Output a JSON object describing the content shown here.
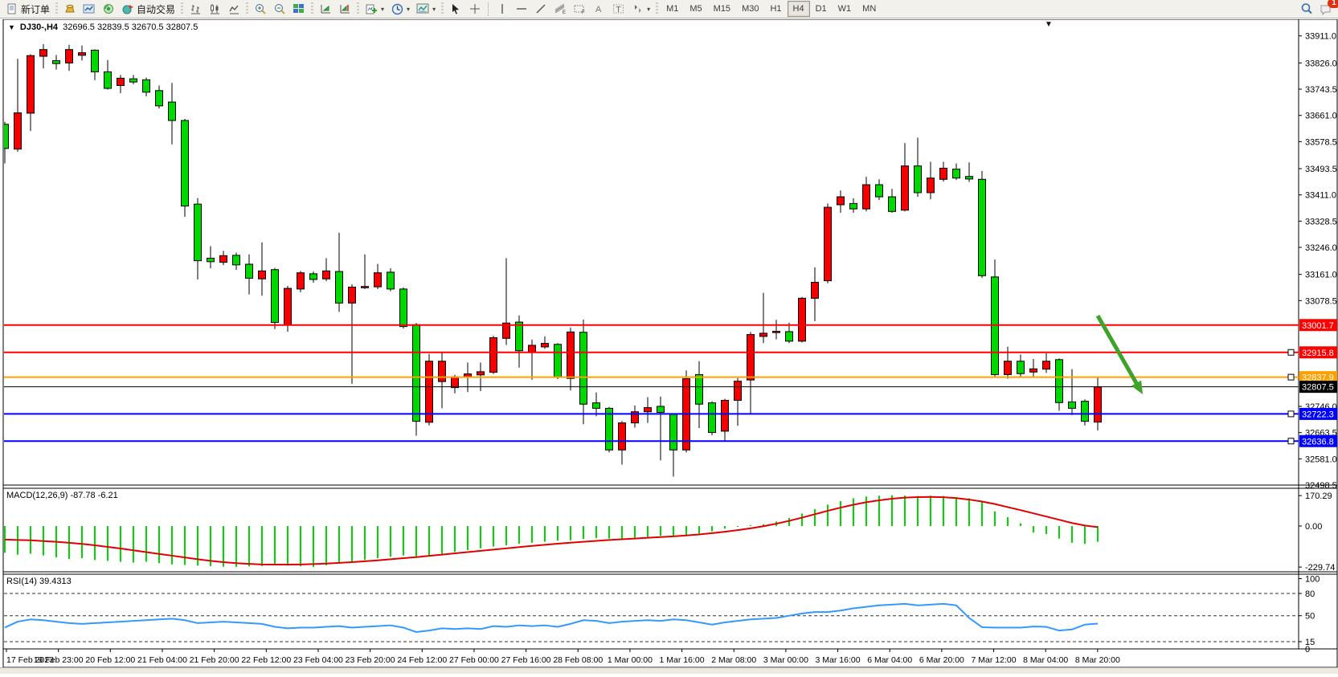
{
  "app": {
    "kind": "MetaTrader-style trading terminal"
  },
  "toolbar": {
    "new_order": "新订单",
    "auto_trading": "自动交易",
    "timeframes": [
      "M1",
      "M5",
      "M15",
      "M30",
      "H1",
      "H4",
      "D1",
      "W1",
      "MN"
    ],
    "active_timeframe": "H4",
    "chat_badge_count": "1",
    "icons": [
      "new-order-icon",
      "deposit-icon",
      "charts-window-icon",
      "signals-icon",
      "autotrading-icon",
      "bar-chart-icon",
      "candlestick-chart-icon",
      "line-chart-icon",
      "zoom-in-icon",
      "zoom-out-icon",
      "tile-windows-icon",
      "auto-scroll-icon",
      "chart-shift-icon",
      "new-chart-icon",
      "periods-clock-icon",
      "template-icon",
      "cursor-icon",
      "crosshair-icon",
      "vertical-line-icon",
      "horizontal-line-icon",
      "trendline-icon",
      "fibonacci-icon",
      "channels-icon",
      "text-icon",
      "text-label-icon",
      "arrows-icon",
      "search-icon",
      "chat-icon"
    ]
  },
  "chart": {
    "header": {
      "dropdown_marker": "▼",
      "symbol": "DJ30-,H4",
      "ohlc": "32696.5 32839.5 32670.5 32807.5"
    },
    "y_ticks": [
      33911.0,
      33826.0,
      33743.5,
      33661.0,
      33578.5,
      33493.5,
      33411.0,
      33328.5,
      33246.0,
      33161.0,
      33078.5,
      32746.0,
      32663.5,
      32581.0,
      32498.5
    ],
    "levels": [
      {
        "price": 33001.7,
        "color": "#ff0000",
        "handle": false,
        "name": "resistance-line-1"
      },
      {
        "price": 32915.8,
        "color": "#ff0000",
        "handle": true,
        "name": "resistance-line-2"
      },
      {
        "price": 32837.9,
        "color": "#ffa000",
        "handle": true,
        "name": "pivot-line"
      },
      {
        "price": 32807.5,
        "color": "#000000",
        "handle": false,
        "name": "current-price-line"
      },
      {
        "price": 32722.3,
        "color": "#0000ff",
        "handle": true,
        "name": "support-line-1"
      },
      {
        "price": 32636.8,
        "color": "#0000ff",
        "handle": true,
        "name": "support-line-2"
      }
    ],
    "x_labels": [
      "17 Feb 2023",
      "19 Feb 23:00",
      "20 Feb 12:00",
      "21 Feb 04:00",
      "21 Feb 20:00",
      "22 Feb 12:00",
      "23 Feb 04:00",
      "23 Feb 20:00",
      "24 Feb 12:00",
      "27 Feb 00:00",
      "27 Feb 16:00",
      "28 Feb 08:00",
      "1 Mar 00:00",
      "1 Mar 16:00",
      "2 Mar 08:00",
      "3 Mar 00:00",
      "3 Mar 16:00",
      "6 Mar 04:00",
      "6 Mar 20:00",
      "7 Mar 12:00",
      "8 Mar 04:00",
      "8 Mar 20:00"
    ],
    "annotation_arrow": {
      "color": "#3fa32a",
      "from": {
        "bar": 85.0,
        "price": 33031
      },
      "to": {
        "bar": 88.5,
        "price": 32784
      }
    },
    "colors": {
      "bull_body": "#f40000",
      "bear_body": "#00d800",
      "outline": "#000000",
      "level_red": "#ff0000",
      "level_orange": "#ffa000",
      "level_blue": "#0000ff",
      "macd_hist": "#00d800",
      "macd_signal": "#e00000",
      "rsi_line": "#3399ff"
    }
  },
  "macd": {
    "title": "MACD(12,26,9)",
    "values": "-87.78 -6.21",
    "axis": [
      "170.29",
      "0.00",
      "-229.74"
    ],
    "range": [
      170.29,
      -229.74
    ]
  },
  "rsi": {
    "title": "RSI(14)",
    "value": "39.4313",
    "axis": [
      "100",
      "80",
      "50",
      "15",
      "0"
    ],
    "dashed_levels": [
      80,
      50,
      15
    ]
  },
  "chart_data": {
    "type": "candlestick+macd+rsi",
    "symbol": "DJ30-",
    "timeframe": "H4",
    "current_bar": {
      "open": 32696.5,
      "high": 32839.5,
      "low": 32670.5,
      "close": 32807.5
    },
    "price_axis_range": [
      33911.0,
      32498.5
    ],
    "candles_format": [
      "color g=bear r=bull",
      "body_top",
      "body_bottom",
      "high",
      "low"
    ],
    "candles": [
      [
        "g",
        33633,
        33557,
        33641,
        33510
      ],
      [
        "r",
        33669,
        33555,
        33839,
        33547
      ],
      [
        "r",
        33849,
        33668,
        33853,
        33612
      ],
      [
        "r",
        33868,
        33847,
        33885,
        33809
      ],
      [
        "g",
        33833,
        33824,
        33851,
        33805
      ],
      [
        "r",
        33868,
        33826,
        33883,
        33801
      ],
      [
        "r",
        33858,
        33850,
        33881,
        33834
      ],
      [
        "g",
        33866,
        33798,
        33869,
        33772
      ],
      [
        "g",
        33798,
        33746,
        33835,
        33742
      ],
      [
        "r",
        33778,
        33755,
        33788,
        33731
      ],
      [
        "g",
        33776,
        33766,
        33788,
        33759
      ],
      [
        "g",
        33773,
        33734,
        33780,
        33721
      ],
      [
        "g",
        33739,
        33691,
        33755,
        33683
      ],
      [
        "g",
        33703,
        33645,
        33763,
        33570
      ],
      [
        "g",
        33645,
        33376,
        33650,
        33342
      ],
      [
        "g",
        33382,
        33204,
        33401,
        33145
      ],
      [
        "g",
        33212,
        33201,
        33250,
        33180
      ],
      [
        "r",
        33220,
        33199,
        33235,
        33190
      ],
      [
        "g",
        33221,
        33191,
        33230,
        33175
      ],
      [
        "g",
        33193,
        33149,
        33224,
        33098
      ],
      [
        "r",
        33172,
        33147,
        33262,
        33094
      ],
      [
        "g",
        33176,
        33010,
        33181,
        32989
      ],
      [
        "r",
        33117,
        33002,
        33125,
        32981
      ],
      [
        "r",
        33166,
        33115,
        33172,
        33105
      ],
      [
        "g",
        33163,
        33145,
        33170,
        33135
      ],
      [
        "r",
        33172,
        33147,
        33212,
        33140
      ],
      [
        "g",
        33170,
        33071,
        33292,
        33043
      ],
      [
        "r",
        33121,
        33071,
        33130,
        32817
      ],
      [
        "r",
        33123,
        33120,
        33224,
        33115
      ],
      [
        "r",
        33166,
        33122,
        33194,
        33115
      ],
      [
        "g",
        33168,
        33115,
        33180,
        33108
      ],
      [
        "g",
        33115,
        32997,
        33120,
        32991
      ],
      [
        "g",
        33003,
        32699,
        33008,
        32654
      ],
      [
        "r",
        32888,
        32696,
        32911,
        32686
      ],
      [
        "r",
        32888,
        32824,
        32917,
        32740
      ],
      [
        "r",
        32839,
        32805,
        32845,
        32787
      ],
      [
        "r",
        32848,
        32838,
        32884,
        32791
      ],
      [
        "r",
        32855,
        32845,
        32884,
        32794
      ],
      [
        "r",
        32962,
        32853,
        32968,
        32848
      ],
      [
        "r",
        33008,
        32960,
        33212,
        32939
      ],
      [
        "g",
        33011,
        32921,
        33032,
        32868
      ],
      [
        "r",
        32938,
        32916,
        32956,
        32830
      ],
      [
        "r",
        32944,
        32933,
        32966,
        32927
      ],
      [
        "g",
        32941,
        32837,
        32945,
        32832
      ],
      [
        "r",
        32980,
        32834,
        32994,
        32796
      ],
      [
        "g",
        32979,
        32753,
        33019,
        32690
      ],
      [
        "g",
        32757,
        32740,
        32790,
        32715
      ],
      [
        "g",
        32740,
        32609,
        32744,
        32601
      ],
      [
        "r",
        32694,
        32609,
        32700,
        32563
      ],
      [
        "r",
        32729,
        32694,
        32749,
        32679
      ],
      [
        "r",
        32742,
        32729,
        32775,
        32694
      ],
      [
        "g",
        32746,
        32727,
        32777,
        32576
      ],
      [
        "g",
        32721,
        32609,
        32725,
        32525
      ],
      [
        "r",
        32833,
        32609,
        32859,
        32601
      ],
      [
        "g",
        32846,
        32753,
        32888,
        32678
      ],
      [
        "g",
        32757,
        32664,
        32762,
        32655
      ],
      [
        "r",
        32765,
        32668,
        32770,
        32638
      ],
      [
        "r",
        32825,
        32765,
        32835,
        32685
      ],
      [
        "r",
        32972,
        32829,
        32980,
        32720
      ],
      [
        "r",
        32976,
        32966,
        33103,
        32945
      ],
      [
        "r",
        32982,
        32979,
        33018,
        32957
      ],
      [
        "g",
        32981,
        32951,
        33009,
        32945
      ],
      [
        "r",
        33086,
        32951,
        33090,
        32947
      ],
      [
        "r",
        33136,
        33086,
        33183,
        33014
      ],
      [
        "r",
        33372,
        33141,
        33384,
        33133
      ],
      [
        "r",
        33405,
        33380,
        33425,
        33355
      ],
      [
        "g",
        33384,
        33367,
        33400,
        33355
      ],
      [
        "r",
        33443,
        33367,
        33468,
        33359
      ],
      [
        "g",
        33443,
        33405,
        33460,
        33395
      ],
      [
        "g",
        33405,
        33359,
        33430,
        33355
      ],
      [
        "r",
        33502,
        33363,
        33574,
        33359
      ],
      [
        "g",
        33502,
        33418,
        33591,
        33405
      ],
      [
        "r",
        33464,
        33418,
        33515,
        33397
      ],
      [
        "r",
        33495,
        33460,
        33515,
        33453
      ],
      [
        "g",
        33492,
        33464,
        33510,
        33458
      ],
      [
        "g",
        33469,
        33461,
        33513,
        33452
      ],
      [
        "g",
        33460,
        33157,
        33486,
        33150
      ],
      [
        "g",
        33153,
        32846,
        33208,
        32836
      ],
      [
        "r",
        32888,
        32846,
        32934,
        32833
      ],
      [
        "g",
        32888,
        32849,
        32909,
        32839
      ],
      [
        "r",
        32864,
        32854,
        32895,
        32840
      ],
      [
        "r",
        32888,
        32863,
        32913,
        32851
      ],
      [
        "g",
        32893,
        32758,
        32897,
        32732
      ],
      [
        "g",
        32760,
        32740,
        32863,
        32719
      ],
      [
        "g",
        32762,
        32699,
        32768,
        32686
      ],
      [
        "r",
        32807.5,
        32696.5,
        32839.5,
        32670.5
      ]
    ],
    "macd_histogram": [
      -150,
      -160,
      -155,
      -165,
      -175,
      -185,
      -180,
      -190,
      -195,
      -200,
      -205,
      -200,
      -208,
      -215,
      -218,
      -222,
      -225,
      -228,
      -229,
      -226,
      -224,
      -220,
      -222,
      -225,
      -229,
      -220,
      -210,
      -200,
      -190,
      -180,
      -172,
      -165,
      -172,
      -168,
      -155,
      -145,
      -135,
      -125,
      -115,
      -108,
      -100,
      -94,
      -88,
      -82,
      -80,
      -72,
      -68,
      -70,
      -75,
      -70,
      -62,
      -55,
      -60,
      -52,
      -42,
      -30,
      -15,
      -5,
      5,
      10,
      25,
      45,
      70,
      95,
      120,
      140,
      155,
      165,
      170,
      172,
      170,
      168,
      170,
      168,
      162,
      155,
      135,
      82,
      50,
      15,
      -37,
      -45,
      -70,
      -94,
      -100,
      -88
    ],
    "macd_signal": [
      -76,
      -78,
      -80,
      -84,
      -88,
      -94,
      -100,
      -108,
      -117,
      -126,
      -136,
      -146,
      -156,
      -166,
      -176,
      -186,
      -195,
      -202,
      -208,
      -212,
      -215,
      -216,
      -216,
      -215,
      -213,
      -210,
      -206,
      -202,
      -197,
      -192,
      -186,
      -180,
      -174,
      -167,
      -160,
      -153,
      -146,
      -139,
      -132,
      -125,
      -118,
      -111,
      -105,
      -99,
      -93,
      -88,
      -83,
      -78,
      -74,
      -70,
      -66,
      -62,
      -58,
      -53,
      -47,
      -40,
      -32,
      -23,
      -13,
      -1,
      13,
      29,
      47,
      66,
      85,
      103,
      119,
      133,
      144,
      153,
      159,
      162,
      163,
      161,
      156,
      148,
      137,
      123,
      106,
      89,
      71,
      53,
      35,
      17,
      3,
      -6.21
    ],
    "rsi_values": [
      34,
      42,
      45,
      44,
      42,
      40,
      39,
      40,
      41,
      42,
      43,
      44,
      45,
      46,
      44,
      40,
      41,
      42,
      41,
      40,
      39,
      35,
      33,
      34,
      34,
      35,
      36,
      34,
      35,
      36,
      37,
      34,
      28,
      30,
      33,
      32,
      33,
      32,
      36,
      35,
      37,
      36,
      37,
      35,
      39,
      44,
      43,
      40,
      42,
      43,
      44,
      43,
      45,
      44,
      41,
      38,
      41,
      43,
      45,
      46,
      47,
      50,
      53,
      55,
      55,
      57,
      60,
      62,
      64,
      65,
      66,
      64,
      65,
      66,
      64,
      47,
      34.5,
      34,
      34,
      34,
      35.5,
      35,
      30,
      31.5,
      38,
      39.4
    ]
  }
}
